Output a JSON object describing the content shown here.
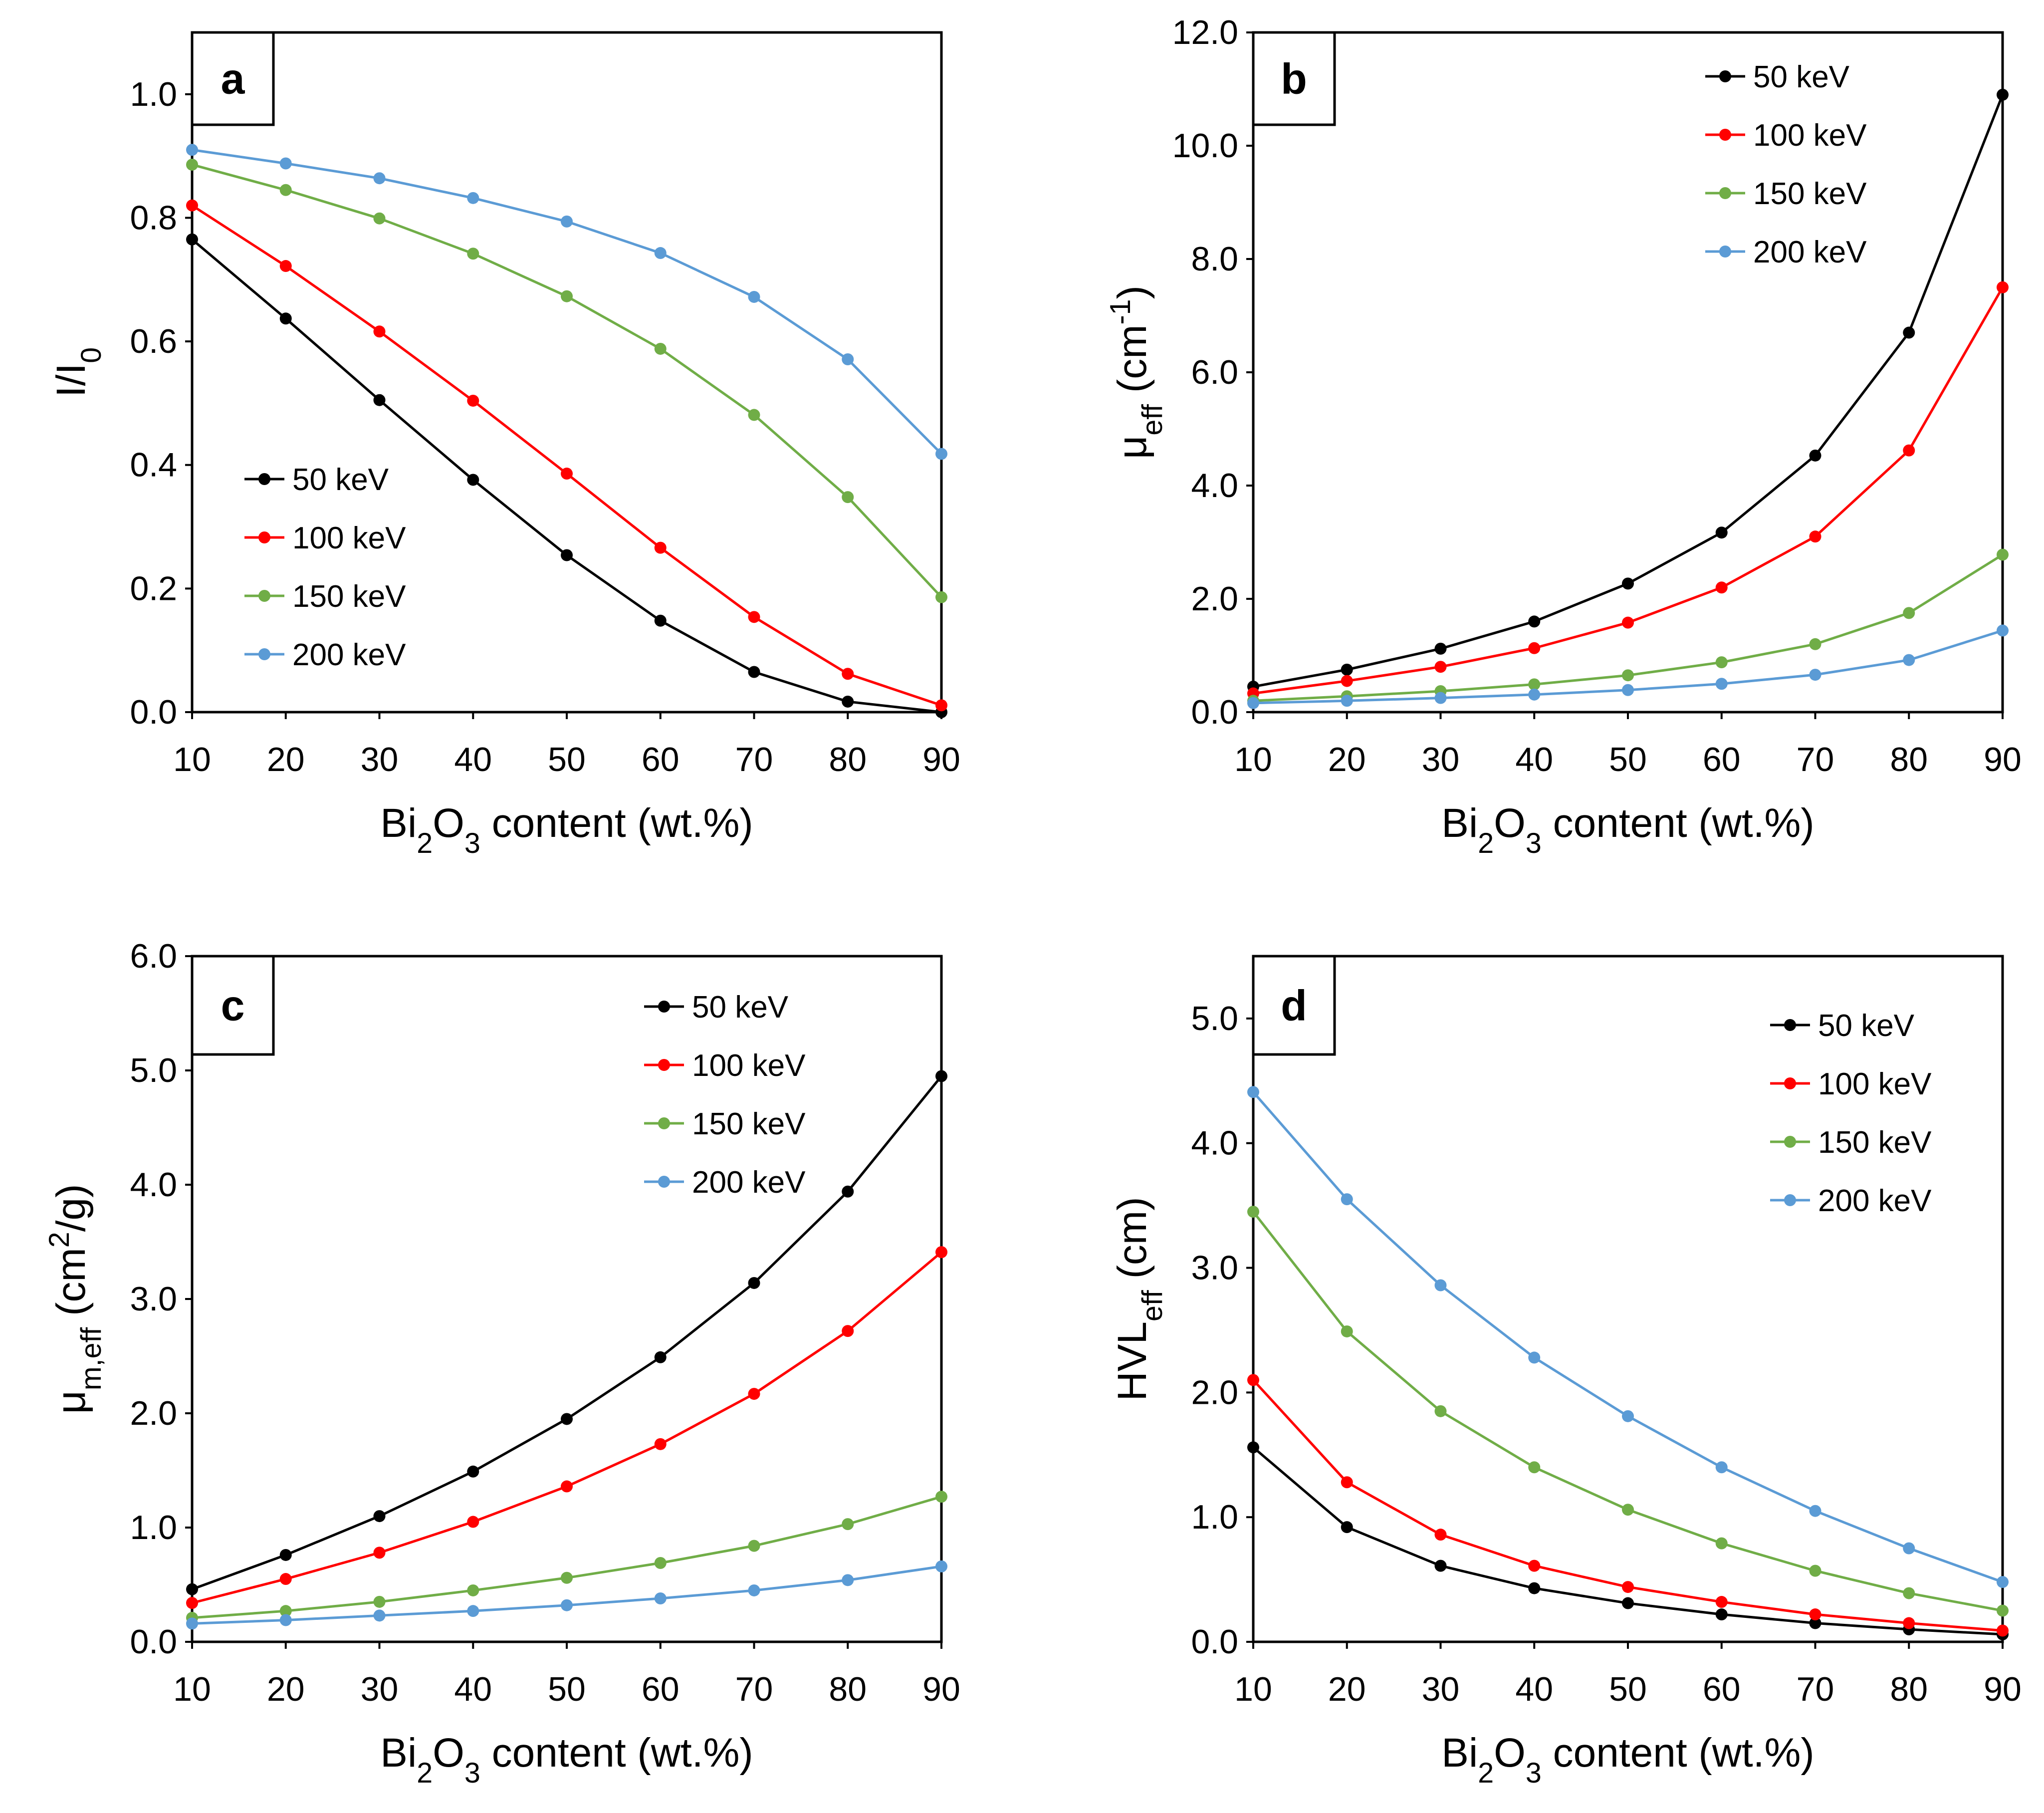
{
  "figure": {
    "panels": [
      "a",
      "b",
      "c",
      "d"
    ]
  },
  "chart_data": [
    {
      "type": "line",
      "panel_label": "a",
      "title": "",
      "xlabel": "Bi2O3 content (wt.%)",
      "ylabel": "I/I0",
      "x": [
        10,
        20,
        30,
        40,
        50,
        60,
        70,
        80,
        90
      ],
      "xlim": [
        10,
        90
      ],
      "ylim": [
        0,
        1.1
      ],
      "yticks": [
        "0.0",
        "0.2",
        "0.4",
        "0.6",
        "0.8",
        "1.0"
      ],
      "xticks": [
        "10",
        "20",
        "30",
        "40",
        "50",
        "60",
        "70",
        "80",
        "90"
      ],
      "grid": false,
      "legend_position": "bottom-left",
      "series": [
        {
          "name": "50 keV",
          "color": "#000000",
          "values": [
            0.765,
            0.637,
            0.505,
            0.376,
            0.254,
            0.148,
            0.065,
            0.017,
            0.0
          ]
        },
        {
          "name": "100 keV",
          "color": "#ff0000",
          "values": [
            0.82,
            0.722,
            0.616,
            0.504,
            0.386,
            0.266,
            0.154,
            0.062,
            0.011
          ]
        },
        {
          "name": "150 keV",
          "color": "#70ad47",
          "values": [
            0.886,
            0.845,
            0.799,
            0.742,
            0.673,
            0.588,
            0.481,
            0.348,
            0.186
          ]
        },
        {
          "name": "200 keV",
          "color": "#5b9bd5",
          "values": [
            0.91,
            0.888,
            0.864,
            0.832,
            0.794,
            0.743,
            0.672,
            0.571,
            0.418
          ]
        }
      ]
    },
    {
      "type": "line",
      "panel_label": "b",
      "title": "",
      "xlabel": "Bi2O3 content (wt.%)",
      "ylabel": "μeff (cm-1)",
      "x": [
        10,
        20,
        30,
        40,
        50,
        60,
        70,
        80,
        90
      ],
      "xlim": [
        10,
        90
      ],
      "ylim": [
        0,
        12
      ],
      "yticks": [
        "0.0",
        "2.0",
        "4.0",
        "6.0",
        "8.0",
        "10.0",
        "12.0"
      ],
      "xticks": [
        "10",
        "20",
        "30",
        "40",
        "50",
        "60",
        "70",
        "80",
        "90"
      ],
      "grid": false,
      "legend_position": "top-right",
      "series": [
        {
          "name": "50 keV",
          "color": "#000000",
          "values": [
            0.45,
            0.75,
            1.12,
            1.6,
            2.27,
            3.17,
            4.53,
            6.7,
            10.9
          ]
        },
        {
          "name": "100 keV",
          "color": "#ff0000",
          "values": [
            0.33,
            0.55,
            0.8,
            1.13,
            1.58,
            2.2,
            3.1,
            4.62,
            7.5
          ]
        },
        {
          "name": "150 keV",
          "color": "#70ad47",
          "values": [
            0.2,
            0.28,
            0.37,
            0.49,
            0.65,
            0.88,
            1.2,
            1.75,
            2.78
          ]
        },
        {
          "name": "200 keV",
          "color": "#5b9bd5",
          "values": [
            0.16,
            0.2,
            0.25,
            0.31,
            0.39,
            0.5,
            0.66,
            0.92,
            1.44
          ]
        }
      ]
    },
    {
      "type": "line",
      "panel_label": "c",
      "title": "",
      "xlabel": "Bi2O3 content (wt.%)",
      "ylabel": "μm,eff (cm2/g)",
      "x": [
        10,
        20,
        30,
        40,
        50,
        60,
        70,
        80,
        90
      ],
      "xlim": [
        10,
        90
      ],
      "ylim": [
        0,
        6
      ],
      "yticks": [
        "0.0",
        "1.0",
        "2.0",
        "3.0",
        "4.0",
        "5.0",
        "6.0"
      ],
      "xticks": [
        "10",
        "20",
        "30",
        "40",
        "50",
        "60",
        "70",
        "80",
        "90"
      ],
      "grid": false,
      "legend_position": "top-right",
      "series": [
        {
          "name": "50 keV",
          "color": "#000000",
          "values": [
            0.46,
            0.76,
            1.1,
            1.49,
            1.95,
            2.49,
            3.14,
            3.94,
            4.95
          ]
        },
        {
          "name": "100 keV",
          "color": "#ff0000",
          "values": [
            0.34,
            0.55,
            0.78,
            1.05,
            1.36,
            1.73,
            2.17,
            2.72,
            3.41
          ]
        },
        {
          "name": "150 keV",
          "color": "#70ad47",
          "values": [
            0.21,
            0.27,
            0.35,
            0.45,
            0.56,
            0.69,
            0.84,
            1.03,
            1.27
          ]
        },
        {
          "name": "200 keV",
          "color": "#5b9bd5",
          "values": [
            0.16,
            0.19,
            0.23,
            0.27,
            0.32,
            0.38,
            0.45,
            0.54,
            0.66
          ]
        }
      ]
    },
    {
      "type": "line",
      "panel_label": "d",
      "title": "",
      "xlabel": "Bi2O3 content (wt.%)",
      "ylabel": "HVLeff (cm)",
      "x": [
        10,
        20,
        30,
        40,
        50,
        60,
        70,
        80,
        90
      ],
      "xlim": [
        10,
        90
      ],
      "ylim": [
        0,
        5.5
      ],
      "yticks": [
        "0.0",
        "1.0",
        "2.0",
        "3.0",
        "4.0",
        "5.0"
      ],
      "xticks": [
        "10",
        "20",
        "30",
        "40",
        "50",
        "60",
        "70",
        "80",
        "90"
      ],
      "grid": false,
      "legend_position": "top-right",
      "series": [
        {
          "name": "50 keV",
          "color": "#000000",
          "values": [
            1.56,
            0.92,
            0.61,
            0.43,
            0.31,
            0.22,
            0.15,
            0.1,
            0.06
          ]
        },
        {
          "name": "100 keV",
          "color": "#ff0000",
          "values": [
            2.1,
            1.28,
            0.86,
            0.61,
            0.44,
            0.32,
            0.22,
            0.15,
            0.09
          ]
        },
        {
          "name": "150 keV",
          "color": "#70ad47",
          "values": [
            3.45,
            2.49,
            1.85,
            1.4,
            1.06,
            0.79,
            0.57,
            0.39,
            0.25
          ]
        },
        {
          "name": "200 keV",
          "color": "#5b9bd5",
          "values": [
            4.41,
            3.55,
            2.86,
            2.28,
            1.81,
            1.4,
            1.05,
            0.75,
            0.48
          ]
        }
      ]
    }
  ]
}
